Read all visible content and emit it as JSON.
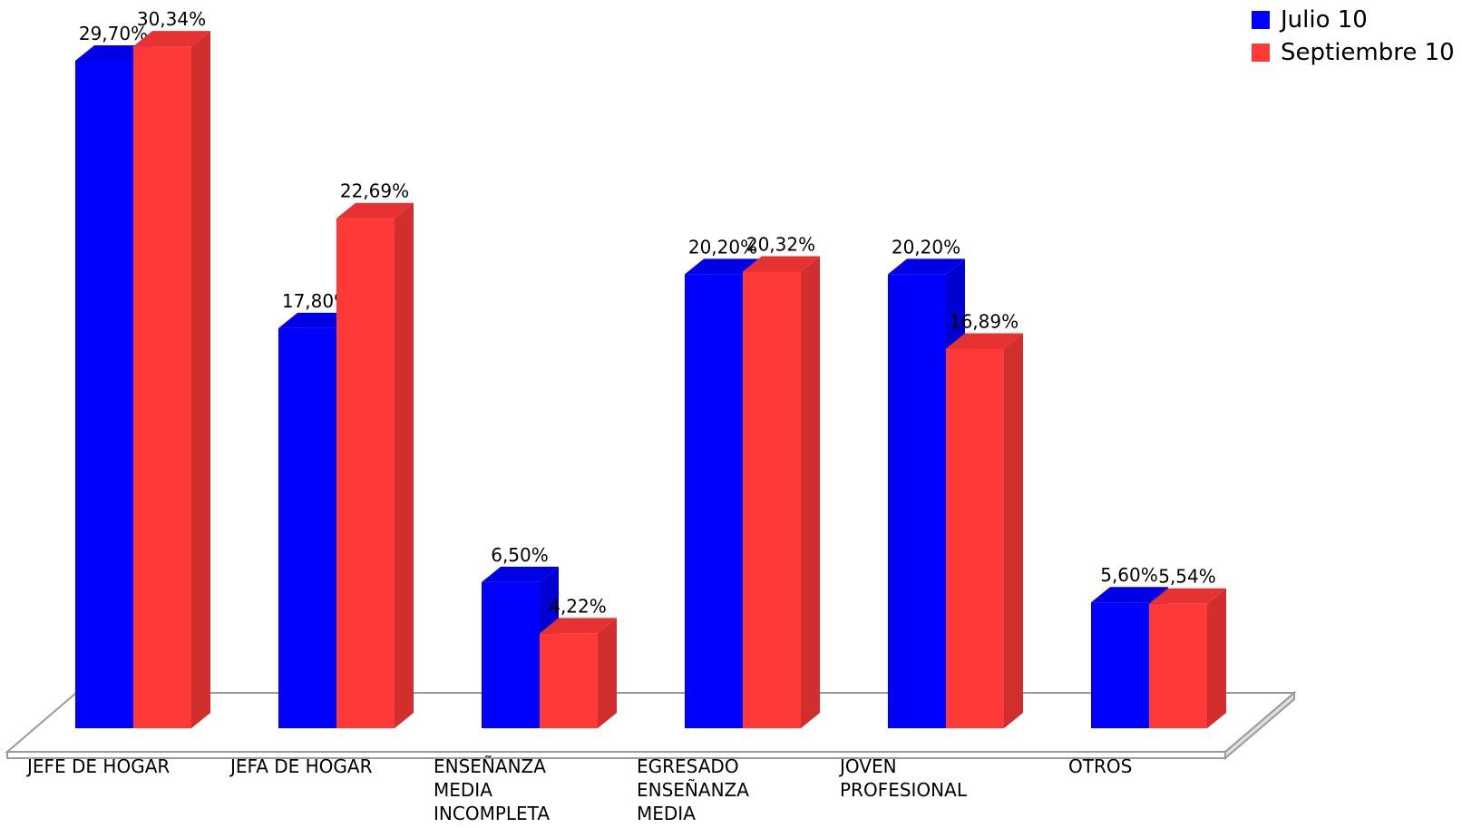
{
  "chart_data": {
    "type": "bar",
    "categories": [
      [
        "JEFE DE HOGAR"
      ],
      [
        "JEFA DE HOGAR"
      ],
      [
        "ENSEÑANZA",
        "MEDIA",
        "INCOMPLETA"
      ],
      [
        "EGRESADO",
        "ENSEÑANZA",
        "MEDIA"
      ],
      [
        "JOVEN",
        "PROFESIONAL"
      ],
      [
        "OTROS"
      ]
    ],
    "series": [
      {
        "name": "Julio 10",
        "color": "#0000ff",
        "values": [
          29.7,
          17.8,
          6.5,
          20.2,
          20.2,
          5.6
        ],
        "labels": [
          "29,70%",
          "17,80%",
          "6,50%",
          "20,20%",
          "20,20%",
          "5,60%"
        ]
      },
      {
        "name": "Septiembre 10",
        "color": "#ff3838",
        "values": [
          30.34,
          22.69,
          4.22,
          20.32,
          16.89,
          5.54
        ],
        "labels": [
          "30,34%",
          "22,69%",
          "4,22%",
          "20,32%",
          "16,89%",
          "5,54%"
        ]
      }
    ],
    "legend_position": "top-right",
    "grid": false
  }
}
